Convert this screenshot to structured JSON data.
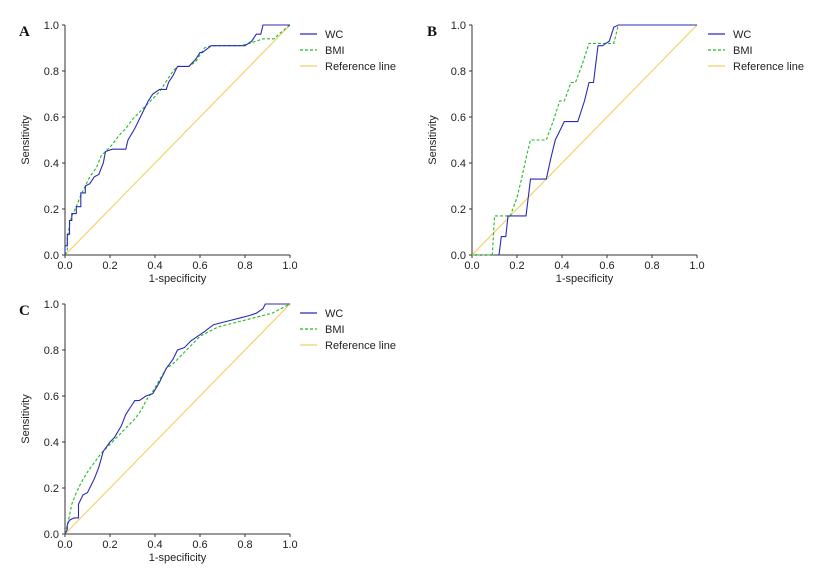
{
  "chart_data": [
    {
      "panel": "A",
      "type": "line",
      "xlabel": "1-specificity",
      "ylabel": "Sensitivity",
      "xlim": [
        0,
        1
      ],
      "ylim": [
        0,
        1
      ],
      "xticks": [
        "0.0",
        "0.2",
        "0.4",
        "0.6",
        "0.8",
        "1.0"
      ],
      "yticks": [
        "0.0",
        "0.2",
        "0.4",
        "0.6",
        "0.8",
        "1.0"
      ],
      "grid": false,
      "legend_position": "right",
      "series": [
        {
          "name": "WC",
          "color": "#2b2bb8",
          "style": "solid",
          "x": [
            0,
            0,
            0.01,
            0.01,
            0.02,
            0.02,
            0.03,
            0.03,
            0.05,
            0.05,
            0.07,
            0.07,
            0.09,
            0.09,
            0.11,
            0.13,
            0.15,
            0.17,
            0.18,
            0.21,
            0.27,
            0.28,
            0.31,
            0.34,
            0.37,
            0.39,
            0.42,
            0.45,
            0.46,
            0.48,
            0.5,
            0.52,
            0.55,
            0.58,
            0.6,
            0.61,
            0.65,
            0.72,
            0.8,
            0.83,
            0.85,
            0.87,
            0.88,
            0.93,
            1.0
          ],
          "y": [
            0,
            0.04,
            0.04,
            0.09,
            0.09,
            0.15,
            0.15,
            0.18,
            0.18,
            0.21,
            0.21,
            0.27,
            0.27,
            0.3,
            0.31,
            0.34,
            0.35,
            0.4,
            0.45,
            0.46,
            0.46,
            0.5,
            0.55,
            0.61,
            0.67,
            0.7,
            0.72,
            0.72,
            0.75,
            0.78,
            0.82,
            0.82,
            0.82,
            0.85,
            0.88,
            0.88,
            0.91,
            0.91,
            0.91,
            0.93,
            0.96,
            0.96,
            1.0,
            1.0,
            1.0
          ]
        },
        {
          "name": "BMI",
          "color": "#22bb22",
          "style": "dashed",
          "x": [
            0,
            0.01,
            0.01,
            0.02,
            0.03,
            0.05,
            0.07,
            0.09,
            0.11,
            0.14,
            0.16,
            0.19,
            0.21,
            0.24,
            0.27,
            0.3,
            0.33,
            0.36,
            0.39,
            0.42,
            0.44,
            0.46,
            0.48,
            0.5,
            0.52,
            0.55,
            0.58,
            0.6,
            0.62,
            0.65,
            0.71,
            0.78,
            0.82,
            0.85,
            0.88,
            0.93,
            0.95,
            1.0
          ],
          "y": [
            0,
            0.02,
            0.07,
            0.13,
            0.17,
            0.21,
            0.26,
            0.3,
            0.34,
            0.38,
            0.43,
            0.46,
            0.48,
            0.52,
            0.55,
            0.59,
            0.62,
            0.65,
            0.68,
            0.71,
            0.74,
            0.77,
            0.8,
            0.82,
            0.82,
            0.82,
            0.84,
            0.87,
            0.9,
            0.91,
            0.91,
            0.91,
            0.92,
            0.93,
            0.94,
            0.94,
            0.96,
            1.0
          ]
        },
        {
          "name": "Reference line",
          "color": "#f0d060",
          "style": "solid",
          "x": [
            0,
            1
          ],
          "y": [
            0,
            1
          ]
        }
      ]
    },
    {
      "panel": "B",
      "type": "line",
      "xlabel": "1-specificity",
      "ylabel": "Sensitivity",
      "xlim": [
        0,
        1
      ],
      "ylim": [
        0,
        1
      ],
      "xticks": [
        "0.0",
        "0.2",
        "0.4",
        "0.6",
        "0.8",
        "1.0"
      ],
      "yticks": [
        "0.0",
        "0.2",
        "0.4",
        "0.6",
        "0.8",
        "1.0"
      ],
      "grid": false,
      "legend_position": "right",
      "series": [
        {
          "name": "WC",
          "color": "#2b2bb8",
          "style": "solid",
          "x": [
            0.12,
            0.13,
            0.15,
            0.16,
            0.18,
            0.21,
            0.24,
            0.26,
            0.28,
            0.31,
            0.33,
            0.35,
            0.37,
            0.41,
            0.44,
            0.47,
            0.5,
            0.52,
            0.54,
            0.56,
            0.58,
            0.61,
            0.63,
            0.65,
            0.7,
            0.8,
            0.9,
            1.0
          ],
          "y": [
            0,
            0.08,
            0.08,
            0.17,
            0.17,
            0.17,
            0.17,
            0.33,
            0.33,
            0.33,
            0.33,
            0.42,
            0.5,
            0.58,
            0.58,
            0.58,
            0.67,
            0.75,
            0.75,
            0.91,
            0.91,
            0.93,
            0.99,
            1.0,
            1.0,
            1.0,
            1.0,
            1.0
          ]
        },
        {
          "name": "BMI",
          "color": "#22bb22",
          "style": "dashed",
          "x": [
            0,
            0.09,
            0.1,
            0.15,
            0.17,
            0.2,
            0.22,
            0.24,
            0.26,
            0.3,
            0.33,
            0.36,
            0.39,
            0.41,
            0.44,
            0.46,
            0.49,
            0.52,
            0.55,
            0.58,
            0.61,
            0.63,
            0.65,
            0.7,
            0.8,
            0.9,
            1.0
          ],
          "y": [
            0,
            0,
            0.17,
            0.17,
            0.17,
            0.25,
            0.33,
            0.42,
            0.5,
            0.5,
            0.5,
            0.58,
            0.67,
            0.67,
            0.75,
            0.75,
            0.83,
            0.92,
            0.92,
            0.92,
            0.92,
            0.92,
            1.0,
            1.0,
            1.0,
            1.0,
            1.0
          ]
        },
        {
          "name": "Reference line",
          "color": "#f0d060",
          "style": "solid",
          "x": [
            0,
            1
          ],
          "y": [
            0,
            1
          ]
        }
      ]
    },
    {
      "panel": "C",
      "type": "line",
      "xlabel": "1-specificity",
      "ylabel": "Sensitivity",
      "xlim": [
        0,
        1
      ],
      "ylim": [
        0,
        1
      ],
      "xticks": [
        "0.0",
        "0.2",
        "0.4",
        "0.6",
        "0.8",
        "1.0"
      ],
      "yticks": [
        "0.0",
        "0.2",
        "0.4",
        "0.6",
        "0.8",
        "1.0"
      ],
      "grid": false,
      "legend_position": "right",
      "series": [
        {
          "name": "WC",
          "color": "#2b2bb8",
          "style": "solid",
          "x": [
            0,
            0.01,
            0.01,
            0.02,
            0.04,
            0.06,
            0.06,
            0.08,
            0.1,
            0.13,
            0.15,
            0.17,
            0.2,
            0.22,
            0.25,
            0.27,
            0.29,
            0.31,
            0.33,
            0.36,
            0.39,
            0.42,
            0.45,
            0.48,
            0.5,
            0.53,
            0.56,
            0.59,
            0.62,
            0.66,
            0.7,
            0.74,
            0.78,
            0.82,
            0.85,
            0.88,
            0.89,
            1.0
          ],
          "y": [
            0,
            0.02,
            0.04,
            0.06,
            0.07,
            0.07,
            0.13,
            0.17,
            0.18,
            0.24,
            0.29,
            0.36,
            0.4,
            0.42,
            0.47,
            0.52,
            0.55,
            0.58,
            0.58,
            0.6,
            0.61,
            0.66,
            0.72,
            0.76,
            0.8,
            0.81,
            0.84,
            0.86,
            0.88,
            0.91,
            0.92,
            0.93,
            0.94,
            0.95,
            0.96,
            0.98,
            1.0,
            1.0
          ]
        },
        {
          "name": "BMI",
          "color": "#22bb22",
          "style": "dashed",
          "x": [
            0,
            0.01,
            0.02,
            0.03,
            0.05,
            0.07,
            0.1,
            0.13,
            0.16,
            0.19,
            0.22,
            0.25,
            0.28,
            0.31,
            0.34,
            0.36,
            0.39,
            0.42,
            0.45,
            0.48,
            0.51,
            0.54,
            0.57,
            0.6,
            0.64,
            0.68,
            0.72,
            0.76,
            0.8,
            0.84,
            0.88,
            0.92,
            0.96,
            1.0
          ],
          "y": [
            0,
            0.04,
            0.08,
            0.13,
            0.18,
            0.22,
            0.27,
            0.31,
            0.35,
            0.38,
            0.41,
            0.44,
            0.47,
            0.5,
            0.54,
            0.58,
            0.62,
            0.67,
            0.72,
            0.74,
            0.77,
            0.8,
            0.83,
            0.86,
            0.88,
            0.9,
            0.91,
            0.92,
            0.93,
            0.94,
            0.95,
            0.96,
            0.98,
            1.0
          ]
        },
        {
          "name": "Reference line",
          "color": "#f0d060",
          "style": "solid",
          "x": [
            0,
            1
          ],
          "y": [
            0,
            1
          ]
        }
      ]
    }
  ]
}
